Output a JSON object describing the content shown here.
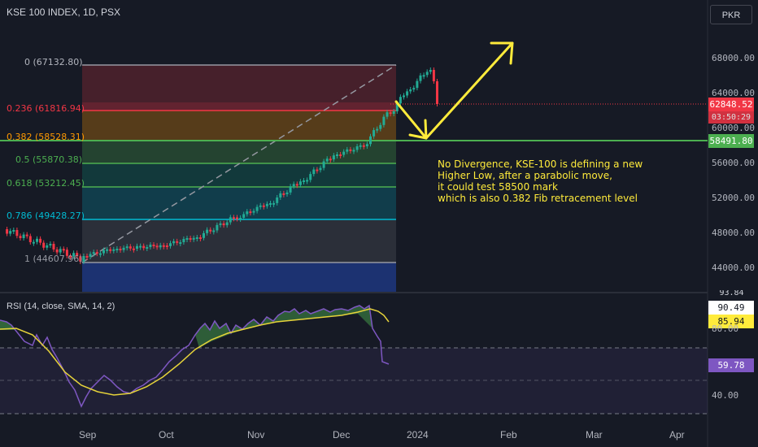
{
  "header": {
    "symbol_title": "KSE 100 INDEX, 1D, PSX",
    "currency_button": "PKR"
  },
  "price_axis": {
    "ticks": [
      "68000.00",
      "64000.00",
      "60000.00",
      "56000.00",
      "52000.00",
      "48000.00",
      "44000.00"
    ],
    "current_price": "62848.52",
    "countdown": "03:50:29",
    "level_tag": "58491.80"
  },
  "fib_labels": [
    {
      "label": "0 (67132.80)",
      "color": "#b2b5be"
    },
    {
      "label": "0.236 (61816.94)",
      "color": "#f23645"
    },
    {
      "label": "0.382 (58528.31)",
      "color": "#ff9800"
    },
    {
      "label": "0.5 (55870.38)",
      "color": "#4caf50"
    },
    {
      "label": "0.618 (53212.45)",
      "color": "#4caf50"
    },
    {
      "label": "0.786 (49428.27)",
      "color": "#00bcd4"
    },
    {
      "label": "1 (44607.96)",
      "color": "#9598a1"
    }
  ],
  "annotation": {
    "line1": "No Divergence, KSE-100 is defining a new",
    "line2": "Higher Low, after a parabolic move,",
    "line3": "it could test 58500 mark",
    "line4": "which is also 0.382 Fib retracement level",
    "color": "#ffeb3b"
  },
  "rsi": {
    "label": "RSI (14, close, SMA, 14, 2)",
    "ticks": [
      "80.00",
      "40.00"
    ],
    "partial_tick": "93.84",
    "upper_value": "90.49",
    "sma_value": "85.94",
    "rsi_value": "59.78"
  },
  "time_axis": [
    "Sep",
    "Oct",
    "Nov",
    "Dec",
    "2024",
    "Feb",
    "Mar",
    "Apr"
  ],
  "colors": {
    "up": "#22ab94",
    "down": "#f23645",
    "rsi_line": "#7e57c2",
    "rsi_sma": "#e6d33a",
    "level_green": "#4caf50"
  }
}
